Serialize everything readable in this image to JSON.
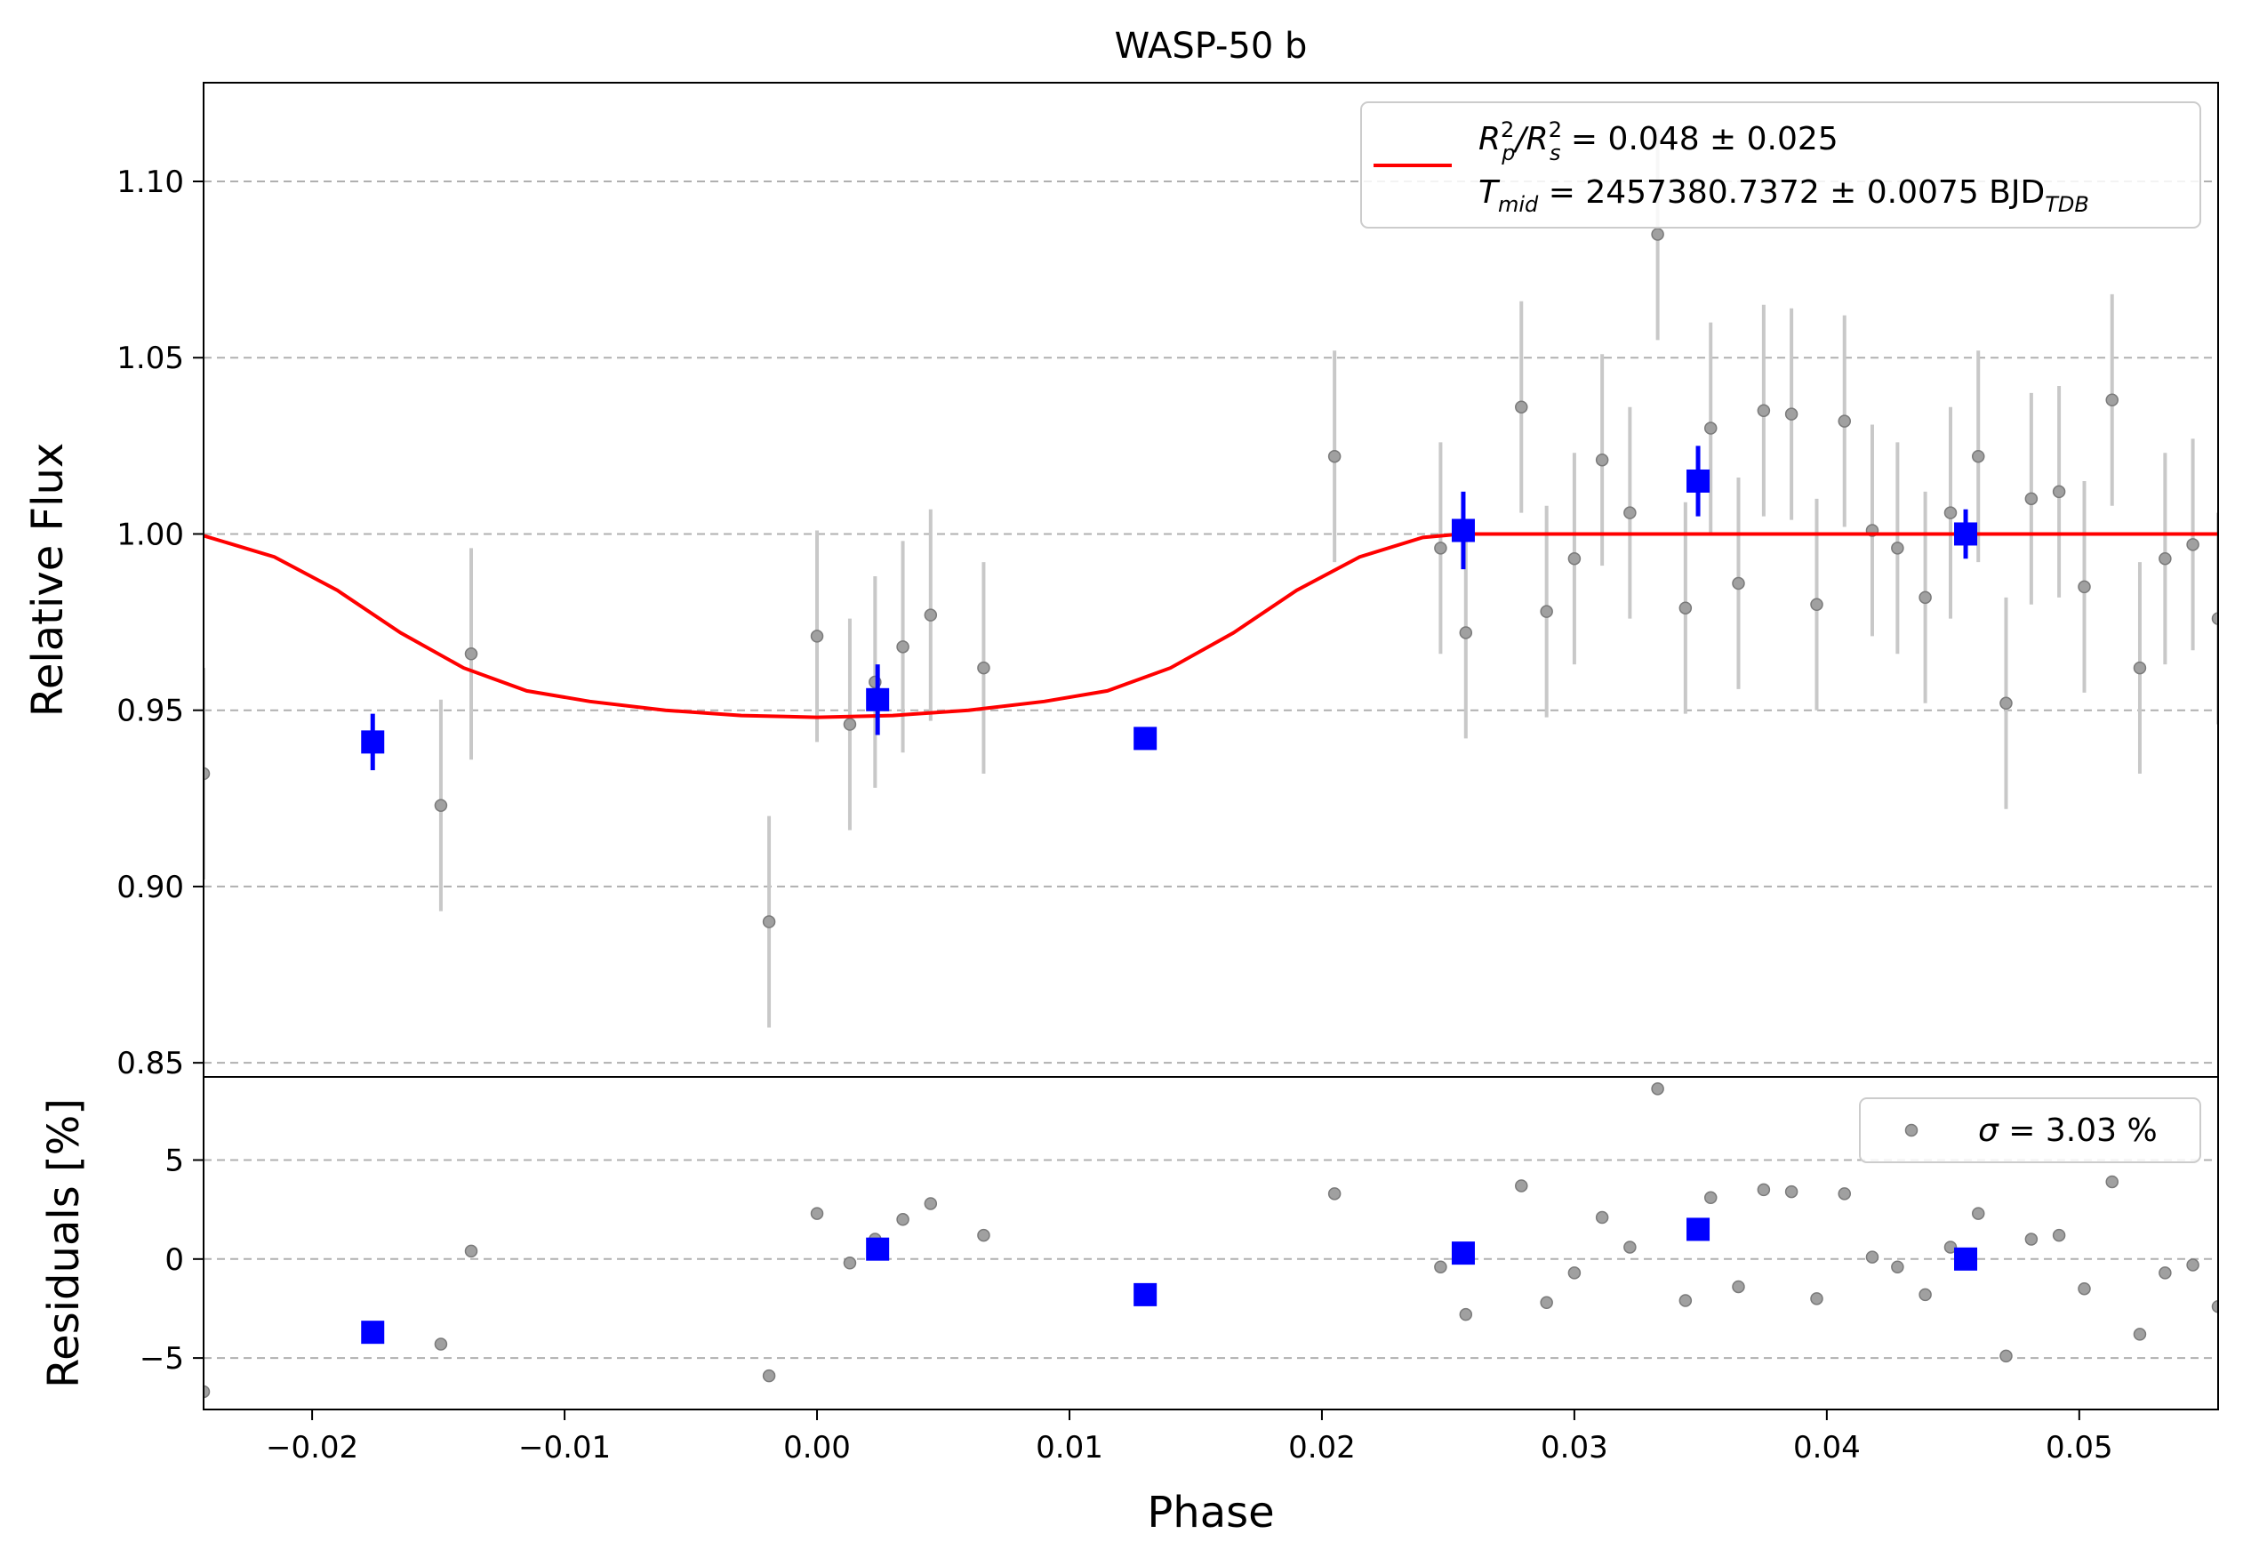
{
  "chart_data": [
    {
      "type": "scatter",
      "title": "WASP-50 b",
      "xlabel": "",
      "ylabel": "Relative Flux",
      "xlim": [
        -0.0243,
        0.0555
      ],
      "ylim": [
        0.846,
        1.128
      ],
      "grid": "y-dashed",
      "x_tick_labels": [],
      "y_ticks": [
        0.85,
        0.9,
        0.95,
        1.0,
        1.05,
        1.1
      ],
      "y_tick_labels": [
        "0.85",
        "0.90",
        "0.95",
        "1.00",
        "1.05",
        "1.10"
      ],
      "legend": {
        "placement": "top-right",
        "line1_parts": [
          "R",
          "2",
          "p",
          "/R",
          "2",
          "s",
          " = 0.048 ± 0.025"
        ],
        "line2_parts": [
          "T",
          "mid",
          " = 2457380.7372 ± 0.0075 BJD",
          "TDB"
        ]
      },
      "colors": {
        "data": "#808080",
        "errorbar": "#c8c8c8",
        "binned": "#0000ff",
        "model": "#ff0000"
      },
      "series": [
        {
          "role": "data",
          "x": [
            -0.0243,
            -0.0149,
            -0.0137,
            -0.0019,
            0.0,
            0.0013,
            0.0023,
            0.0034,
            0.0045,
            0.0066,
            0.0205,
            0.0247,
            0.0257,
            0.0279,
            0.0289,
            0.03,
            0.0311,
            0.0322,
            0.0333,
            0.0344,
            0.0354,
            0.0365,
            0.0375,
            0.0386,
            0.0396,
            0.0407,
            0.0418,
            0.0428,
            0.0439,
            0.0449,
            0.046,
            0.0471,
            0.0481,
            0.0492,
            0.0502,
            0.0513,
            0.0524,
            0.0534,
            0.0545,
            0.0555
          ],
          "y": [
            0.932,
            0.923,
            0.966,
            0.89,
            0.971,
            0.946,
            0.958,
            0.968,
            0.977,
            0.962,
            1.022,
            0.996,
            0.972,
            1.036,
            0.978,
            0.993,
            1.021,
            1.006,
            1.085,
            0.979,
            1.03,
            0.986,
            1.035,
            1.034,
            0.98,
            1.032,
            1.001,
            0.996,
            0.982,
            1.006,
            1.022,
            0.952,
            1.01,
            1.012,
            0.985,
            1.038,
            0.962,
            0.993,
            0.997,
            0.976
          ],
          "yerr": 0.03
        },
        {
          "role": "binned",
          "x": [
            -0.0176,
            0.0024,
            0.013,
            0.0256,
            0.0349,
            0.0455
          ],
          "y": [
            0.941,
            0.953,
            0.942,
            1.001,
            1.015,
            1.0
          ],
          "yerr": [
            0.008,
            0.01,
            0.0,
            0.011,
            0.01,
            0.007
          ]
        },
        {
          "role": "model",
          "x": [
            -0.0243,
            -0.0215,
            -0.019,
            -0.0165,
            -0.014,
            -0.0115,
            -0.009,
            -0.006,
            -0.003,
            0.0,
            0.003,
            0.006,
            0.009,
            0.0115,
            0.014,
            0.0165,
            0.019,
            0.0215,
            0.024,
            0.0255,
            0.028,
            0.04,
            0.0555
          ],
          "y": [
            0.9995,
            0.9935,
            0.984,
            0.972,
            0.962,
            0.9555,
            0.9525,
            0.95,
            0.9485,
            0.948,
            0.9485,
            0.95,
            0.9525,
            0.9555,
            0.962,
            0.972,
            0.984,
            0.9935,
            0.999,
            1.0,
            1.0,
            1.0,
            1.0
          ]
        }
      ]
    },
    {
      "type": "scatter",
      "title": "",
      "xlabel": "Phase",
      "ylabel": "Residuals [%]",
      "xlim": [
        -0.0243,
        0.0555
      ],
      "ylim": [
        -7.6,
        9.2
      ],
      "grid": "y-dashed",
      "x_ticks": [
        -0.02,
        -0.01,
        0.0,
        0.01,
        0.02,
        0.03,
        0.04,
        0.05
      ],
      "x_tick_labels": [
        "−0.02",
        "−0.01",
        "0.00",
        "0.01",
        "0.02",
        "0.03",
        "0.04",
        "0.05"
      ],
      "y_ticks": [
        -5,
        0,
        5
      ],
      "y_tick_labels": [
        "−5",
        "0",
        "5"
      ],
      "legend": {
        "placement": "top-right",
        "label_parts": [
          "σ",
          " = 3.03 %"
        ]
      },
      "series": [
        {
          "role": "data",
          "x": [
            -0.0243,
            -0.0149,
            -0.0137,
            -0.0019,
            0.0,
            0.0013,
            0.0023,
            0.0034,
            0.0045,
            0.0066,
            0.0205,
            0.0247,
            0.0257,
            0.0279,
            0.0289,
            0.03,
            0.0311,
            0.0322,
            0.0333,
            0.0344,
            0.0354,
            0.0365,
            0.0375,
            0.0386,
            0.0396,
            0.0407,
            0.0418,
            0.0428,
            0.0439,
            0.0449,
            0.046,
            0.0471,
            0.0481,
            0.0492,
            0.0502,
            0.0513,
            0.0524,
            0.0534,
            0.0545,
            0.0555
          ],
          "y": [
            -6.7,
            -4.3,
            0.4,
            -5.9,
            2.3,
            -0.2,
            1.0,
            2.0,
            2.8,
            1.2,
            3.3,
            -0.4,
            -2.8,
            3.7,
            -2.2,
            -0.7,
            2.1,
            0.6,
            8.6,
            -2.1,
            3.1,
            -1.4,
            3.5,
            3.4,
            -2.0,
            3.3,
            0.1,
            -0.4,
            -1.8,
            0.6,
            2.3,
            -4.9,
            1.0,
            1.2,
            -1.5,
            3.9,
            -3.8,
            -0.7,
            -0.3,
            -2.4
          ]
        },
        {
          "role": "binned",
          "x": [
            -0.0176,
            0.0024,
            0.013,
            0.0256,
            0.0349,
            0.0455
          ],
          "y": [
            -3.7,
            0.5,
            -1.8,
            0.3,
            1.5,
            0.0
          ]
        }
      ]
    }
  ]
}
